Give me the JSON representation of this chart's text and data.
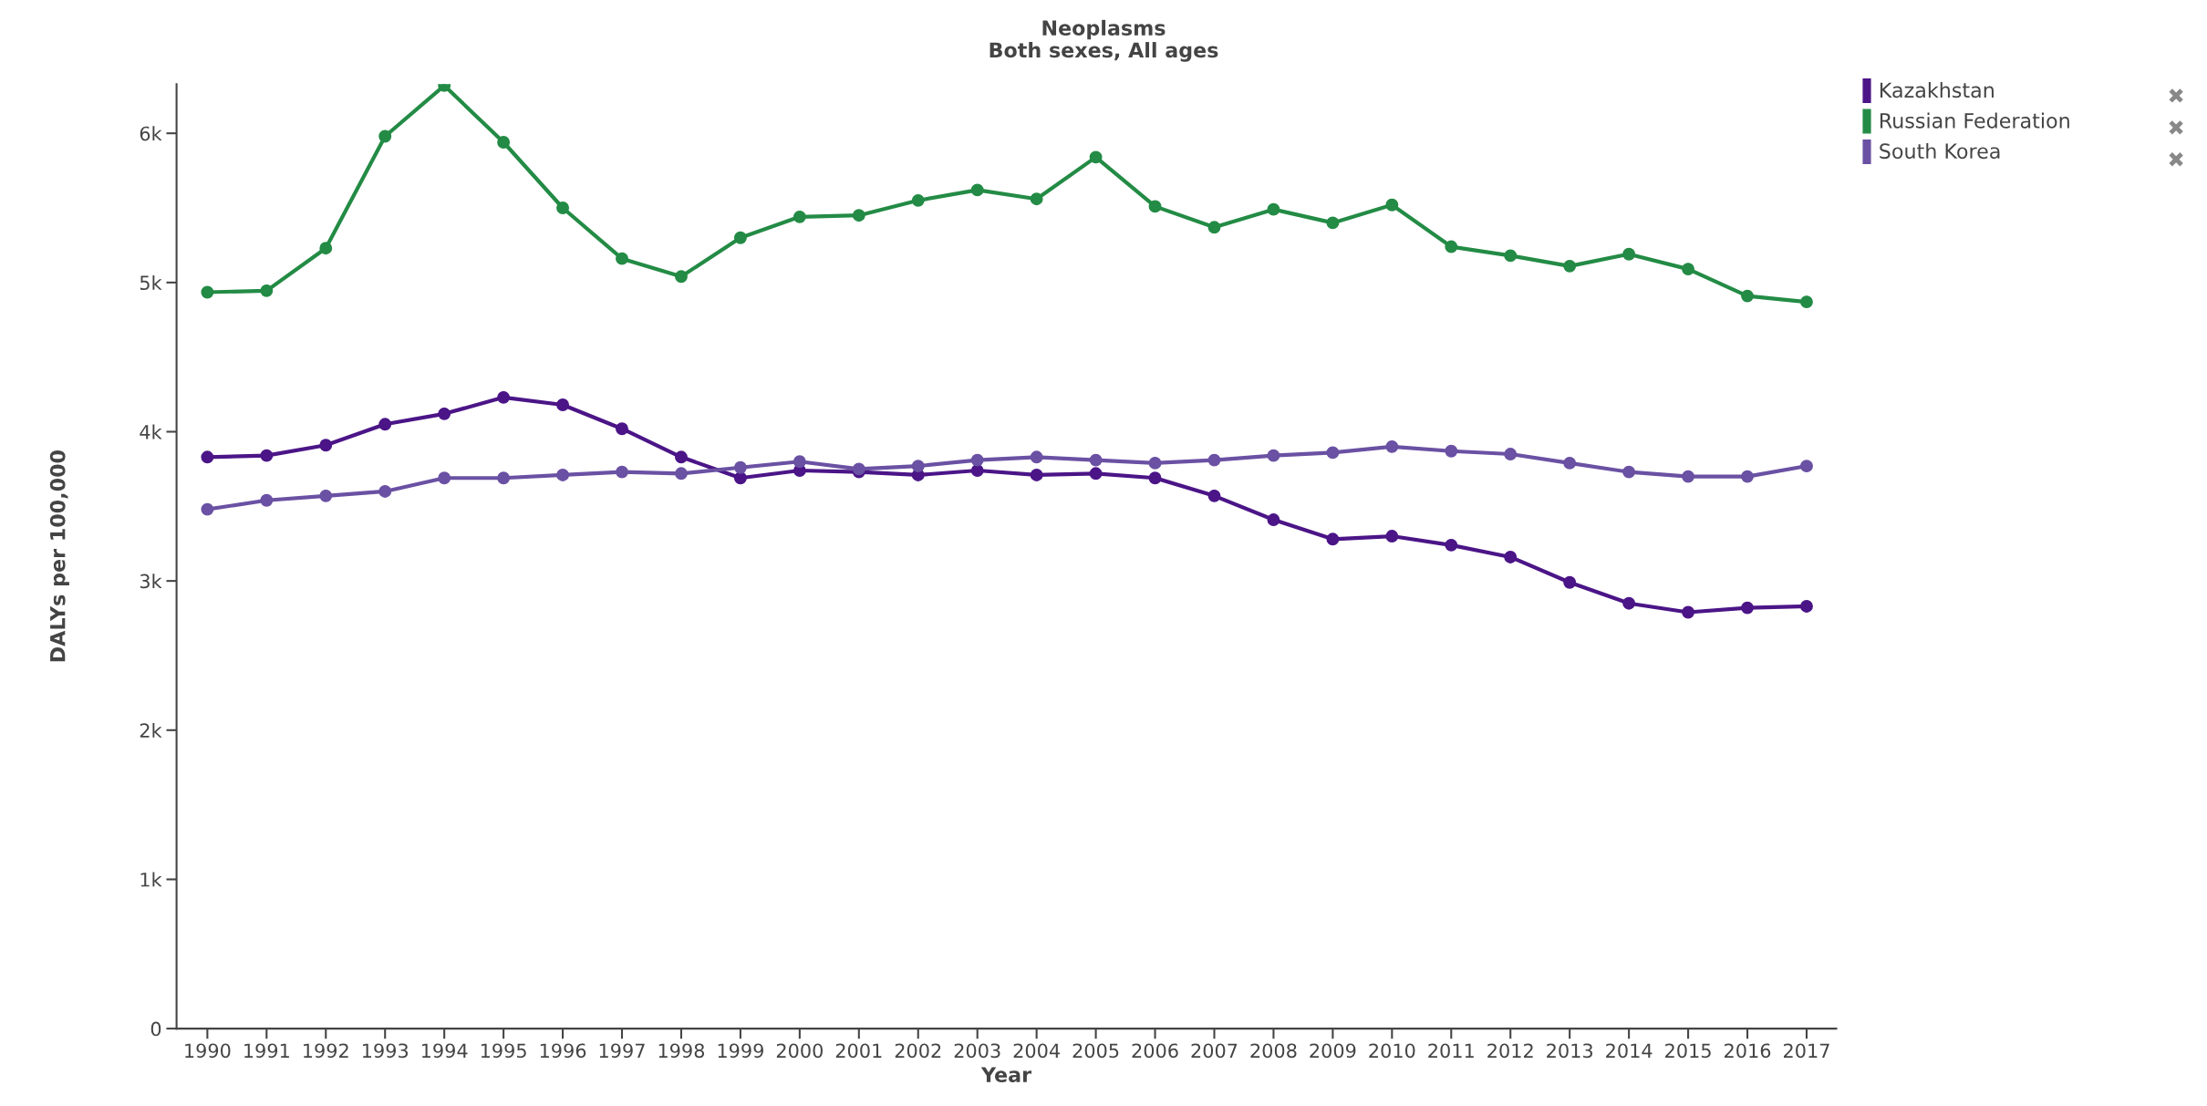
{
  "chart_data": {
    "type": "line",
    "title": "Neoplasms",
    "subtitle": "Both sexes, All ages",
    "xlabel": "Year",
    "ylabel": "DALYs per 100,000",
    "x": [
      1990,
      1991,
      1992,
      1993,
      1994,
      1995,
      1996,
      1997,
      1998,
      1999,
      2000,
      2001,
      2002,
      2003,
      2004,
      2005,
      2006,
      2007,
      2008,
      2009,
      2010,
      2011,
      2012,
      2013,
      2014,
      2015,
      2016,
      2017
    ],
    "series": [
      {
        "name": "Kazakhstan",
        "color": "#4b1587",
        "values": [
          3830,
          3840,
          3910,
          4050,
          4120,
          4230,
          4180,
          4020,
          3830,
          3690,
          3740,
          3730,
          3710,
          3740,
          3710,
          3720,
          3690,
          3570,
          3410,
          3280,
          3300,
          3240,
          3160,
          2990,
          2850,
          2790,
          2820,
          2830
        ]
      },
      {
        "name": "Russian Federation",
        "color": "#238b45",
        "values": [
          4935,
          4945,
          5230,
          5980,
          6320,
          5940,
          5500,
          5160,
          5040,
          5300,
          5440,
          5450,
          5550,
          5620,
          5560,
          5840,
          5510,
          5370,
          5490,
          5400,
          5520,
          5240,
          5180,
          5110,
          5190,
          5090,
          4910,
          4870
        ]
      },
      {
        "name": "South Korea",
        "color": "#6a51a3",
        "values": [
          3480,
          3540,
          3570,
          3600,
          3690,
          3690,
          3710,
          3730,
          3720,
          3760,
          3800,
          3750,
          3770,
          3810,
          3830,
          3810,
          3790,
          3810,
          3840,
          3860,
          3900,
          3870,
          3850,
          3790,
          3730,
          3700,
          3700,
          3770
        ]
      }
    ],
    "xlim": [
      1989.48,
      2017.5
    ],
    "xticks": [
      1990,
      1991,
      1992,
      1993,
      1994,
      1995,
      1996,
      1997,
      1998,
      1999,
      2000,
      2001,
      2002,
      2003,
      2004,
      2005,
      2006,
      2007,
      2008,
      2009,
      2010,
      2011,
      2012,
      2013,
      2014,
      2015,
      2016,
      2017
    ],
    "ylim": [
      0,
      6330
    ],
    "yticks": [
      0,
      {
        "value": 1000,
        "label": "1k"
      },
      {
        "value": 2000,
        "label": "2k"
      },
      {
        "value": 3000,
        "label": "3k"
      },
      {
        "value": 4000,
        "label": "4k"
      },
      {
        "value": 5000,
        "label": "5k"
      },
      {
        "value": 6000,
        "label": "6k"
      }
    ],
    "grid": false,
    "legend": "top right",
    "marker": "circle",
    "line_style": "solid"
  }
}
